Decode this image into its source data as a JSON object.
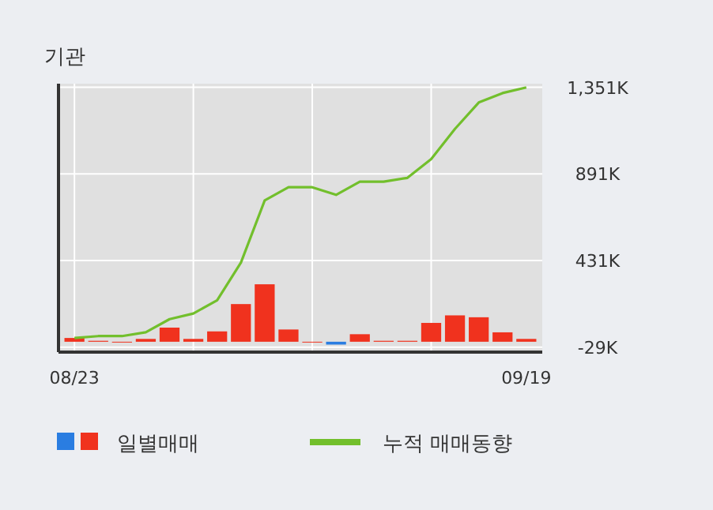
{
  "chart_data": {
    "type": "bar",
    "title": "기관",
    "categories": [
      "08/23",
      null,
      null,
      null,
      null,
      null,
      null,
      null,
      null,
      null,
      null,
      null,
      null,
      null,
      null,
      null,
      null,
      null,
      null,
      "09/19"
    ],
    "series": [
      {
        "name": "일별매매",
        "colors": [
          "#f0321e",
          "#f0321e",
          "#f0321e",
          "#f0321e",
          "#f0321e",
          "#f0321e",
          "#f0321e",
          "#f0321e",
          "#f0321e",
          "#f0321e",
          "#f0321e",
          "#2a7de1",
          "#f0321e",
          "#f0321e",
          "#f0321e",
          "#f0321e",
          "#f0321e",
          "#f0321e",
          "#f0321e",
          "#f0321e"
        ],
        "values": [
          20,
          5,
          0,
          15,
          75,
          15,
          55,
          200,
          305,
          65,
          0,
          -15,
          40,
          5,
          5,
          100,
          140,
          130,
          50,
          15
        ]
      },
      {
        "name": "누적 매매동향",
        "type": "line",
        "color": "#72bf2c",
        "values": [
          20,
          30,
          30,
          50,
          120,
          150,
          220,
          420,
          750,
          820,
          820,
          780,
          850,
          850,
          870,
          970,
          1130,
          1270,
          1320,
          1350
        ]
      }
    ],
    "ylim": [
      -55,
      1370
    ],
    "yticks": [
      {
        "value": -29,
        "label": "-29K"
      },
      {
        "value": 431,
        "label": "431K"
      },
      {
        "value": 891,
        "label": "891K"
      },
      {
        "value": 1351,
        "label": "1,351K"
      }
    ],
    "grid": true,
    "legend": "bottom left"
  }
}
